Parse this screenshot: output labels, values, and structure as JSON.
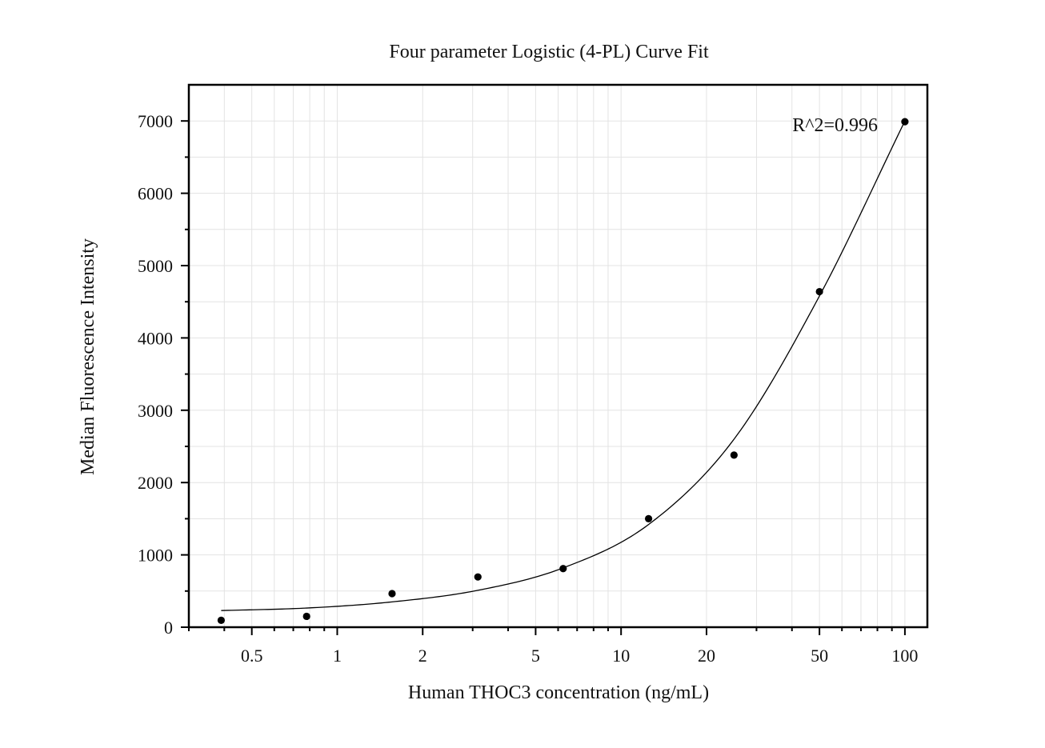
{
  "chart_data": {
    "type": "scatter",
    "title": "Four parameter Logistic (4-PL) Curve Fit",
    "xlabel": "Human THOC3 concentration (ng/mL)",
    "ylabel": "Median Fluorescence Intensity",
    "x_scale": "log",
    "xlim": [
      0.3,
      120
    ],
    "ylim": [
      0,
      7500
    ],
    "x_ticks": [
      0.5,
      1,
      2,
      5,
      10,
      20,
      50,
      100
    ],
    "x_tick_labels": [
      "0.5",
      "1",
      "2",
      "5",
      "10",
      "20",
      "50",
      "100"
    ],
    "y_ticks": [
      0,
      1000,
      2000,
      3000,
      4000,
      5000,
      6000,
      7000
    ],
    "y_tick_labels": [
      "0",
      "1000",
      "2000",
      "3000",
      "4000",
      "5000",
      "6000",
      "7000"
    ],
    "grid": true,
    "series": [
      {
        "kind": "points",
        "x": [
          0.39,
          0.78,
          1.56,
          3.13,
          6.25,
          12.5,
          25,
          50,
          100
        ],
        "y": [
          95,
          150,
          465,
          695,
          810,
          1500,
          2380,
          4640,
          6990
        ]
      },
      {
        "kind": "fit-curve",
        "x": [
          0.39,
          0.78,
          1.56,
          3.13,
          6.25,
          12.5,
          25,
          50,
          100
        ],
        "y": [
          230,
          265,
          350,
          510,
          820,
          1420,
          2600,
          4580,
          7000
        ]
      }
    ],
    "annotations": [
      {
        "text": "R^2=0.996"
      }
    ]
  }
}
